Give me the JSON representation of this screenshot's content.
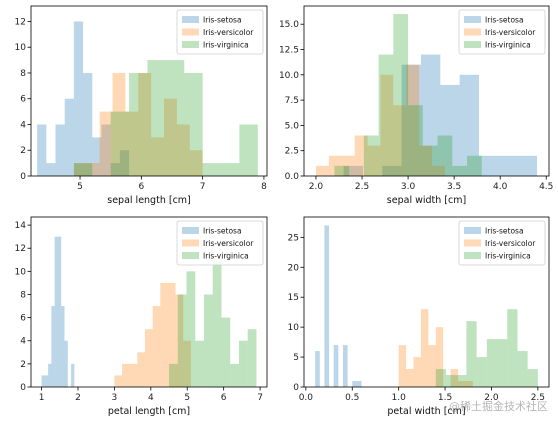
{
  "colors": {
    "setosa": "#1f77b4",
    "versicolor": "#ff7f0e",
    "virginica": "#2ca02c",
    "alpha": 0.3
  },
  "watermark": "@稀土掘金技术社区",
  "chart_data": [
    {
      "type": "histogram",
      "xlabel": "sepal length [cm]",
      "xlim": [
        4.2,
        8.05
      ],
      "ylim": [
        0,
        13.2
      ],
      "xticks": [
        5,
        6,
        7,
        8
      ],
      "yticks": [
        0,
        2,
        4,
        6,
        8,
        10,
        12
      ],
      "legend_loc": "top-right",
      "series": [
        {
          "name": "Iris-setosa",
          "color_key": "setosa",
          "edges": [
            4.3,
            4.45,
            4.6,
            4.75,
            4.9,
            5.05,
            5.2,
            5.35,
            5.5,
            5.65,
            5.8
          ],
          "counts": [
            4,
            1,
            4,
            6,
            12,
            8,
            3,
            4,
            1,
            2
          ]
        },
        {
          "name": "Iris-versicolor",
          "color_key": "versicolor",
          "edges": [
            4.9,
            5.11,
            5.32,
            5.53,
            5.74,
            5.95,
            6.16,
            6.37,
            6.58,
            6.79,
            7.0
          ],
          "counts": [
            1,
            1,
            5,
            8,
            5,
            8,
            3,
            6,
            4,
            2
          ]
        },
        {
          "name": "Iris-virginica",
          "color_key": "virginica",
          "edges": [
            4.9,
            5.2,
            5.5,
            5.8,
            6.1,
            6.4,
            6.7,
            7.0,
            7.3,
            7.6,
            7.9
          ],
          "counts": [
            1,
            0,
            5,
            8,
            9,
            9,
            8,
            1,
            1,
            4
          ]
        }
      ]
    },
    {
      "type": "histogram",
      "xlabel": "sepal width [cm]",
      "xlim": [
        1.87,
        4.53
      ],
      "ylim": [
        0,
        16.8
      ],
      "xticks": [
        2.0,
        2.5,
        3.0,
        3.5,
        4.0,
        4.5
      ],
      "yticks": [
        0.0,
        2.5,
        5.0,
        7.5,
        10.0,
        12.5,
        15.0
      ],
      "tick_decimals": 1,
      "legend_loc": "top-right",
      "series": [
        {
          "name": "Iris-setosa",
          "color_key": "setosa",
          "edges": [
            2.3,
            2.51,
            2.72,
            2.93,
            3.14,
            3.35,
            3.56,
            3.77,
            3.98,
            4.19,
            4.4
          ],
          "counts": [
            1,
            0,
            1,
            11,
            12,
            9,
            10,
            2,
            2,
            2
          ]
        },
        {
          "name": "Iris-versicolor",
          "color_key": "versicolor",
          "edges": [
            2.0,
            2.14,
            2.28,
            2.42,
            2.56,
            2.7,
            2.84,
            2.98,
            3.12,
            3.26,
            3.4
          ],
          "counts": [
            1,
            2,
            2,
            4,
            3,
            10,
            7,
            11,
            3,
            1
          ]
        },
        {
          "name": "Iris-virginica",
          "color_key": "virginica",
          "edges": [
            2.2,
            2.36,
            2.52,
            2.68,
            2.84,
            3.0,
            3.16,
            3.32,
            3.48,
            3.64,
            3.8
          ],
          "counts": [
            1,
            0,
            4,
            12,
            16,
            7,
            3,
            4,
            1,
            2
          ]
        }
      ]
    },
    {
      "type": "histogram",
      "xlabel": "petal length [cm]",
      "xlim": [
        0.71,
        7.19
      ],
      "ylim": [
        0,
        14.7
      ],
      "xticks": [
        1,
        2,
        3,
        4,
        5,
        6,
        7
      ],
      "yticks": [
        0,
        2,
        4,
        6,
        8,
        10,
        12,
        14
      ],
      "legend_loc": "top-right",
      "series": [
        {
          "name": "Iris-setosa",
          "color_key": "setosa",
          "edges": [
            1.0,
            1.09,
            1.18,
            1.27,
            1.36,
            1.45,
            1.54,
            1.63,
            1.72,
            1.81,
            1.9
          ],
          "counts": [
            1,
            1,
            2,
            7,
            13,
            13,
            7,
            4,
            0,
            2
          ]
        },
        {
          "name": "Iris-versicolor",
          "color_key": "versicolor",
          "edges": [
            3.0,
            3.21,
            3.42,
            3.63,
            3.84,
            4.05,
            4.26,
            4.47,
            4.68,
            4.89,
            5.1
          ],
          "counts": [
            1,
            2,
            2,
            3,
            5,
            7,
            9,
            9,
            8,
            4
          ]
        },
        {
          "name": "Iris-virginica",
          "color_key": "virginica",
          "edges": [
            4.5,
            4.74,
            4.98,
            5.22,
            5.46,
            5.7,
            5.94,
            6.18,
            6.42,
            6.66,
            6.9
          ],
          "counts": [
            2,
            8,
            10,
            4,
            8,
            11,
            6,
            2,
            4,
            5
          ]
        }
      ]
    },
    {
      "type": "histogram",
      "xlabel": "petal width [cm]",
      "xlim": [
        -0.02,
        2.62
      ],
      "ylim": [
        0,
        28.4
      ],
      "xticks": [
        0.0,
        0.5,
        1.0,
        1.5,
        2.0,
        2.5
      ],
      "yticks": [
        0,
        5,
        10,
        15,
        20,
        25
      ],
      "tick_decimals_x": 1,
      "legend_loc": "top-right",
      "series": [
        {
          "name": "Iris-setosa",
          "color_key": "setosa",
          "edges": [
            0.1,
            0.15,
            0.2,
            0.25,
            0.3,
            0.35,
            0.4,
            0.45,
            0.5,
            0.55,
            0.6
          ],
          "counts": [
            6,
            0,
            27,
            0,
            7,
            0,
            7,
            0,
            1,
            1
          ]
        },
        {
          "name": "Iris-versicolor",
          "color_key": "versicolor",
          "edges": [
            1.0,
            1.08,
            1.16,
            1.24,
            1.32,
            1.4,
            1.48,
            1.56,
            1.64,
            1.72,
            1.8
          ],
          "counts": [
            7,
            3,
            5,
            13,
            7,
            10,
            0,
            3,
            1,
            1
          ]
        },
        {
          "name": "Iris-virginica",
          "color_key": "virginica",
          "edges": [
            1.4,
            1.51,
            1.62,
            1.73,
            1.84,
            1.95,
            2.06,
            2.17,
            2.28,
            2.39,
            2.5
          ],
          "counts": [
            3,
            2,
            2,
            11,
            5,
            8,
            8,
            13,
            6,
            3
          ]
        }
      ]
    }
  ]
}
